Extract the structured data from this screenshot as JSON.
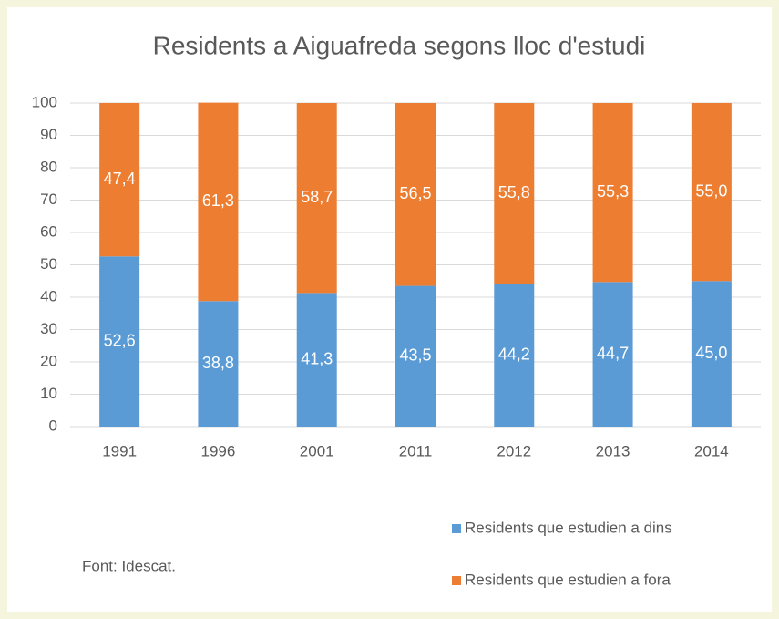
{
  "chart_data": {
    "type": "stacked_bar",
    "title": "Residents a Aiguafreda segons lloc d'estudi",
    "categories": [
      "1991",
      "1996",
      "2001",
      "2011",
      "2012",
      "2013",
      "2014"
    ],
    "series": [
      {
        "name": "Residents que estudien a dins",
        "color": "#5b9bd5",
        "values": [
          52.6,
          38.8,
          41.3,
          43.5,
          44.2,
          44.7,
          45.0
        ],
        "value_labels": [
          "52,6",
          "38,8",
          "41,3",
          "43,5",
          "44,2",
          "44,7",
          "45,0"
        ]
      },
      {
        "name": "Residents que estudien a fora",
        "color": "#ed7d31",
        "values": [
          47.4,
          61.3,
          58.7,
          56.5,
          55.8,
          55.3,
          55.0
        ],
        "value_labels": [
          "47,4",
          "61,3",
          "58,7",
          "56,5",
          "55,8",
          "55,3",
          "55,0"
        ]
      }
    ],
    "ylim": [
      0,
      100
    ],
    "yticks": [
      0,
      10,
      20,
      30,
      40,
      50,
      60,
      70,
      80,
      90,
      100
    ],
    "grid": true,
    "legend": "bottom-right",
    "source": "Font: Idescat."
  }
}
